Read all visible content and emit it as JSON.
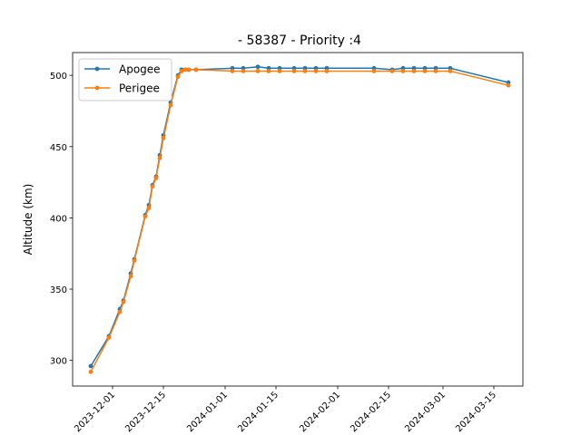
{
  "chart_data": {
    "type": "line",
    "title": "- 58387 - Priority :4",
    "xlabel": "",
    "ylabel": "Altitude (km)",
    "x_tick_labels": [
      "2023-12-01",
      "2023-12-15",
      "2024-01-01",
      "2024-01-15",
      "2024-02-01",
      "2024-02-15",
      "2024-03-01",
      "2024-03-15"
    ],
    "x_ticks": [
      "2023-12-01",
      "2023-12-15",
      "2024-01-01",
      "2024-01-15",
      "2024-02-01",
      "2024-02-15",
      "2024-03-01",
      "2024-03-15"
    ],
    "xlim": [
      "2023-11-20",
      "2024-03-23"
    ],
    "y_ticks": [
      300,
      350,
      400,
      450,
      500
    ],
    "ylim": [
      282,
      516
    ],
    "grid": false,
    "legend_position": "upper-left",
    "colors": {
      "apogee": "#1f77b4",
      "perigee": "#ff7f0e"
    },
    "series": [
      {
        "name": "Apogee",
        "color": "#1f77b4",
        "points": [
          [
            "2023-11-25",
            296
          ],
          [
            "2023-11-30",
            317
          ],
          [
            "2023-12-03",
            336
          ],
          [
            "2023-12-04",
            342
          ],
          [
            "2023-12-06",
            361
          ],
          [
            "2023-12-07",
            371
          ],
          [
            "2023-12-10",
            402
          ],
          [
            "2023-12-11",
            409
          ],
          [
            "2023-12-12",
            423
          ],
          [
            "2023-12-13",
            429
          ],
          [
            "2023-12-14",
            444
          ],
          [
            "2023-12-15",
            458
          ],
          [
            "2023-12-17",
            481
          ],
          [
            "2023-12-19",
            500
          ],
          [
            "2023-12-20",
            504
          ],
          [
            "2023-12-21",
            504
          ],
          [
            "2023-12-22",
            504
          ],
          [
            "2023-12-24",
            504
          ],
          [
            "2024-01-03",
            505
          ],
          [
            "2024-01-06",
            505
          ],
          [
            "2024-01-10",
            506
          ],
          [
            "2024-01-13",
            505
          ],
          [
            "2024-01-16",
            505
          ],
          [
            "2024-01-20",
            505
          ],
          [
            "2024-01-23",
            505
          ],
          [
            "2024-01-26",
            505
          ],
          [
            "2024-01-29",
            505
          ],
          [
            "2024-02-11",
            505
          ],
          [
            "2024-02-16",
            504
          ],
          [
            "2024-02-19",
            505
          ],
          [
            "2024-02-22",
            505
          ],
          [
            "2024-02-25",
            505
          ],
          [
            "2024-02-28",
            505
          ],
          [
            "2024-03-03",
            505
          ],
          [
            "2024-03-19",
            495
          ]
        ]
      },
      {
        "name": "Perigee",
        "color": "#ff7f0e",
        "points": [
          [
            "2023-11-25",
            292
          ],
          [
            "2023-11-30",
            316
          ],
          [
            "2023-12-03",
            334
          ],
          [
            "2023-12-04",
            341
          ],
          [
            "2023-12-06",
            359
          ],
          [
            "2023-12-07",
            370
          ],
          [
            "2023-12-10",
            401
          ],
          [
            "2023-12-11",
            407
          ],
          [
            "2023-12-12",
            422
          ],
          [
            "2023-12-13",
            428
          ],
          [
            "2023-12-14",
            442
          ],
          [
            "2023-12-15",
            456
          ],
          [
            "2023-12-17",
            479
          ],
          [
            "2023-12-19",
            499
          ],
          [
            "2023-12-20",
            503
          ],
          [
            "2023-12-21",
            504
          ],
          [
            "2023-12-22",
            504
          ],
          [
            "2023-12-24",
            504
          ],
          [
            "2024-01-03",
            503
          ],
          [
            "2024-01-06",
            503
          ],
          [
            "2024-01-10",
            503
          ],
          [
            "2024-01-13",
            503
          ],
          [
            "2024-01-16",
            503
          ],
          [
            "2024-01-20",
            503
          ],
          [
            "2024-01-23",
            503
          ],
          [
            "2024-01-26",
            503
          ],
          [
            "2024-01-29",
            503
          ],
          [
            "2024-02-11",
            503
          ],
          [
            "2024-02-16",
            503
          ],
          [
            "2024-02-19",
            503
          ],
          [
            "2024-02-22",
            503
          ],
          [
            "2024-02-25",
            503
          ],
          [
            "2024-02-28",
            503
          ],
          [
            "2024-03-03",
            503
          ],
          [
            "2024-03-19",
            493
          ]
        ]
      }
    ]
  }
}
